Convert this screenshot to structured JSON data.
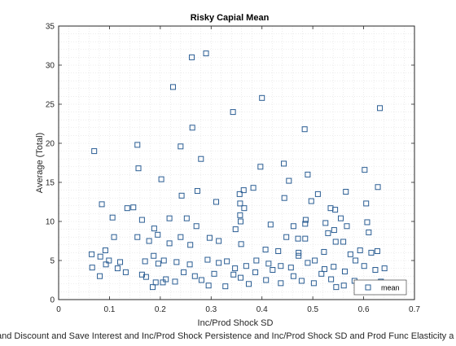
{
  "chart_data": {
    "type": "scatter",
    "title": "Risky Capial Mean",
    "xlabel": "Inc/Prod Shock SD",
    "ylabel": "Average (Total)",
    "footer": "and Discount and Save Interest and Inc/Prod Shock Persistence and Inc/Prod Shock SD and Prod Func Elasticity a",
    "xlim": [
      0,
      0.7
    ],
    "ylim": [
      0,
      35
    ],
    "xticks": [
      "0",
      "0.1",
      "0.2",
      "0.3",
      "0.4",
      "0.5",
      "0.6",
      "0.7"
    ],
    "yticks": [
      "0",
      "5",
      "10",
      "15",
      "20",
      "25",
      "30",
      "35"
    ],
    "grid": "minor-dotted",
    "legend": {
      "position": "bottom-right",
      "entries": [
        "mean"
      ]
    },
    "marker": "square",
    "color": "#2a5d93",
    "series": [
      {
        "name": "mean",
        "points": [
          [
            0.07,
            19.0
          ],
          [
            0.155,
            19.8
          ],
          [
            0.157,
            16.8
          ],
          [
            0.225,
            27.2
          ],
          [
            0.262,
            31.0
          ],
          [
            0.29,
            31.5
          ],
          [
            0.263,
            22.0
          ],
          [
            0.24,
            19.6
          ],
          [
            0.28,
            18.0
          ],
          [
            0.343,
            24.0
          ],
          [
            0.4,
            25.8
          ],
          [
            0.484,
            21.8
          ],
          [
            0.632,
            24.5
          ],
          [
            0.397,
            17.0
          ],
          [
            0.443,
            17.4
          ],
          [
            0.49,
            16.0
          ],
          [
            0.602,
            16.6
          ],
          [
            0.202,
            15.4
          ],
          [
            0.453,
            15.2
          ],
          [
            0.364,
            14.0
          ],
          [
            0.383,
            14.3
          ],
          [
            0.565,
            13.8
          ],
          [
            0.628,
            14.4
          ],
          [
            0.242,
            13.3
          ],
          [
            0.273,
            13.9
          ],
          [
            0.444,
            13.0
          ],
          [
            0.497,
            12.6
          ],
          [
            0.51,
            13.5
          ],
          [
            0.085,
            12.2
          ],
          [
            0.356,
            13.5
          ],
          [
            0.31,
            12.5
          ],
          [
            0.357,
            12.3
          ],
          [
            0.135,
            11.7
          ],
          [
            0.365,
            11.7
          ],
          [
            0.147,
            11.8
          ],
          [
            0.218,
            10.4
          ],
          [
            0.252,
            10.4
          ],
          [
            0.357,
            10.8
          ],
          [
            0.358,
            10.0
          ],
          [
            0.485,
            9.7
          ],
          [
            0.535,
            11.7
          ],
          [
            0.605,
            12.3
          ],
          [
            0.544,
            11.5
          ],
          [
            0.555,
            10.4
          ],
          [
            0.525,
            9.8
          ],
          [
            0.607,
            9.9
          ],
          [
            0.106,
            10.5
          ],
          [
            0.164,
            10.2
          ],
          [
            0.417,
            9.6
          ],
          [
            0.462,
            9.4
          ],
          [
            0.486,
            10.2
          ],
          [
            0.567,
            9.4
          ],
          [
            0.188,
            9.1
          ],
          [
            0.271,
            9.4
          ],
          [
            0.348,
            9.0
          ],
          [
            0.542,
            8.9
          ],
          [
            0.61,
            8.6
          ],
          [
            0.109,
            8.0
          ],
          [
            0.155,
            8.0
          ],
          [
            0.178,
            7.5
          ],
          [
            0.195,
            8.3
          ],
          [
            0.24,
            8.0
          ],
          [
            0.297,
            7.9
          ],
          [
            0.448,
            8.0
          ],
          [
            0.471,
            7.8
          ],
          [
            0.485,
            7.8
          ],
          [
            0.53,
            8.5
          ],
          [
            0.545,
            7.4
          ],
          [
            0.218,
            7.2
          ],
          [
            0.259,
            7.0
          ],
          [
            0.315,
            7.5
          ],
          [
            0.359,
            7.1
          ],
          [
            0.407,
            6.4
          ],
          [
            0.432,
            6.2
          ],
          [
            0.472,
            6.0
          ],
          [
            0.522,
            6.1
          ],
          [
            0.56,
            7.4
          ],
          [
            0.574,
            5.8
          ],
          [
            0.593,
            6.3
          ],
          [
            0.615,
            6.0
          ],
          [
            0.627,
            6.2
          ],
          [
            0.065,
            5.8
          ],
          [
            0.082,
            5.5
          ],
          [
            0.092,
            6.3
          ],
          [
            0.099,
            5.0
          ],
          [
            0.121,
            4.8
          ],
          [
            0.17,
            4.9
          ],
          [
            0.187,
            5.6
          ],
          [
            0.196,
            4.6
          ],
          [
            0.207,
            5.0
          ],
          [
            0.232,
            4.8
          ],
          [
            0.258,
            4.5
          ],
          [
            0.293,
            5.1
          ],
          [
            0.315,
            4.7
          ],
          [
            0.331,
            4.9
          ],
          [
            0.347,
            4.0
          ],
          [
            0.369,
            4.3
          ],
          [
            0.389,
            5.0
          ],
          [
            0.413,
            4.6
          ],
          [
            0.437,
            4.3
          ],
          [
            0.457,
            4.1
          ],
          [
            0.472,
            5.6
          ],
          [
            0.49,
            4.7
          ],
          [
            0.504,
            5.0
          ],
          [
            0.523,
            3.9
          ],
          [
            0.541,
            4.2
          ],
          [
            0.563,
            3.6
          ],
          [
            0.584,
            5.0
          ],
          [
            0.601,
            4.3
          ],
          [
            0.623,
            3.8
          ],
          [
            0.641,
            4.0
          ],
          [
            0.066,
            4.1
          ],
          [
            0.081,
            3.0
          ],
          [
            0.093,
            4.5
          ],
          [
            0.116,
            4.0
          ],
          [
            0.132,
            3.5
          ],
          [
            0.164,
            3.2
          ],
          [
            0.172,
            2.9
          ],
          [
            0.191,
            2.2
          ],
          [
            0.211,
            2.6
          ],
          [
            0.229,
            2.3
          ],
          [
            0.246,
            3.5
          ],
          [
            0.268,
            3.0
          ],
          [
            0.281,
            2.5
          ],
          [
            0.306,
            3.3
          ],
          [
            0.328,
            1.7
          ],
          [
            0.344,
            3.2
          ],
          [
            0.358,
            2.8
          ],
          [
            0.387,
            3.5
          ],
          [
            0.408,
            2.5
          ],
          [
            0.421,
            3.8
          ],
          [
            0.437,
            2.1
          ],
          [
            0.462,
            3.0
          ],
          [
            0.478,
            2.4
          ],
          [
            0.502,
            2.1
          ],
          [
            0.517,
            3.3
          ],
          [
            0.536,
            2.6
          ],
          [
            0.561,
            1.8
          ],
          [
            0.582,
            2.4
          ],
          [
            0.615,
            1.7
          ],
          [
            0.634,
            2.3
          ],
          [
            0.185,
            1.6
          ],
          [
            0.205,
            2.2
          ],
          [
            0.295,
            1.8
          ],
          [
            0.374,
            2.0
          ],
          [
            0.546,
            1.6
          ],
          [
            0.628,
            1.8
          ]
        ]
      }
    ]
  }
}
